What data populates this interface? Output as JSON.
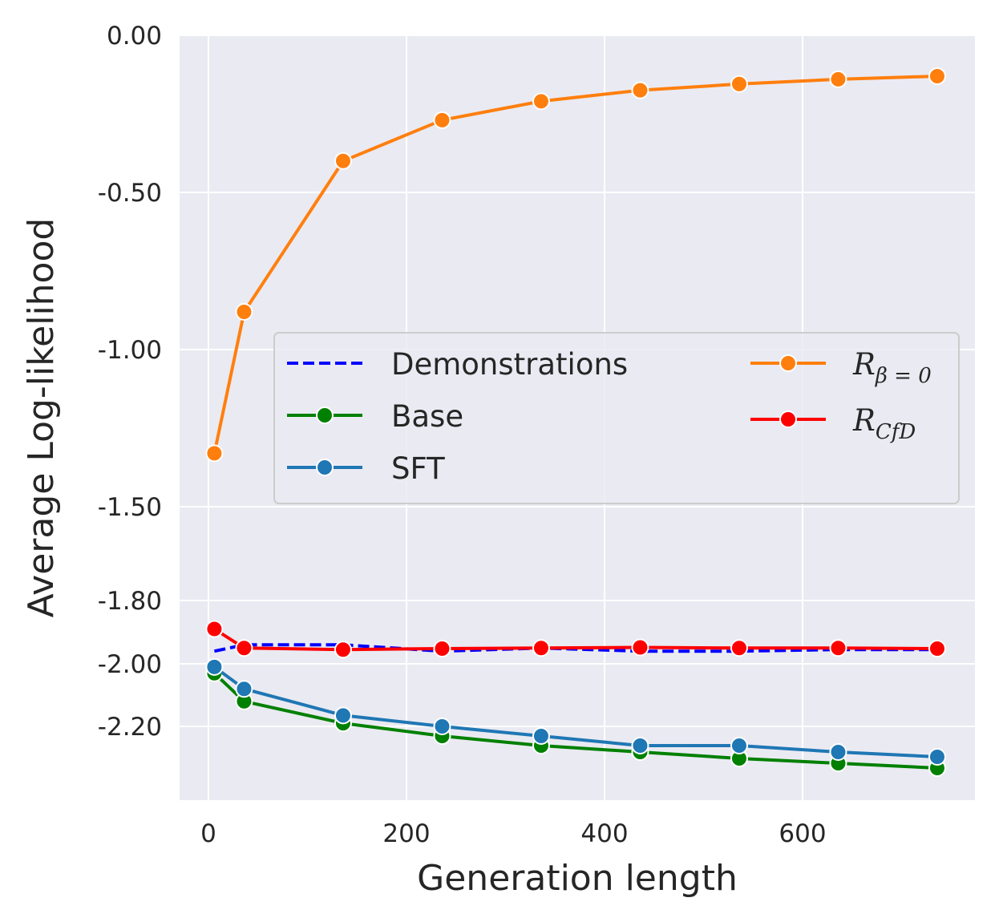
{
  "chart_data": {
    "type": "line",
    "xlabel": "Generation length",
    "ylabel": "Average Log-likelihood",
    "xticks": [
      0,
      200,
      400,
      600
    ],
    "yticks": [
      0.0,
      -0.5,
      -1.0,
      -1.5,
      -1.8,
      -2.0,
      -2.2
    ],
    "ytick_labels": [
      "0.00",
      "-0.50",
      "-1.00",
      "-1.50",
      "-1.80",
      "-2.00",
      "-2.20"
    ],
    "xlim": [
      -30,
      770
    ],
    "ylim": [
      -2.43,
      0.0
    ],
    "grid": true,
    "legend_position": "center-right",
    "x": [
      6,
      36,
      136,
      236,
      336,
      436,
      536,
      636,
      736
    ],
    "series": [
      {
        "name": "Demonstrations",
        "color": "#0000ff",
        "style": "dashed",
        "marker": false,
        "values": [
          -1.96,
          -1.94,
          -1.94,
          -1.96,
          -1.95,
          -1.96,
          -1.96,
          -1.955,
          -1.955
        ]
      },
      {
        "name": "Base",
        "color": "#008000",
        "style": "solid",
        "marker": true,
        "values": [
          -2.03,
          -2.12,
          -2.19,
          -2.23,
          -2.26,
          -2.28,
          -2.3,
          -2.315,
          -2.33
        ]
      },
      {
        "name": "SFT",
        "color": "#1f77b4",
        "style": "solid",
        "marker": true,
        "values": [
          -2.01,
          -2.08,
          -2.165,
          -2.2,
          -2.23,
          -2.26,
          -2.26,
          -2.28,
          -2.295
        ]
      },
      {
        "name": "R_{β=0}",
        "name_main": "R",
        "name_sub": "β = 0",
        "color": "#ff7f0e",
        "style": "solid",
        "marker": true,
        "values": [
          -1.33,
          -0.88,
          -0.4,
          -0.27,
          -0.21,
          -0.175,
          -0.155,
          -0.14,
          -0.13
        ]
      },
      {
        "name": "R_{CfD}",
        "name_main": "R",
        "name_sub": "CfD",
        "color": "#ff0000",
        "style": "solid",
        "marker": true,
        "values": [
          -1.89,
          -1.95,
          -1.955,
          -1.952,
          -1.95,
          -1.948,
          -1.95,
          -1.95,
          -1.952
        ]
      }
    ]
  }
}
